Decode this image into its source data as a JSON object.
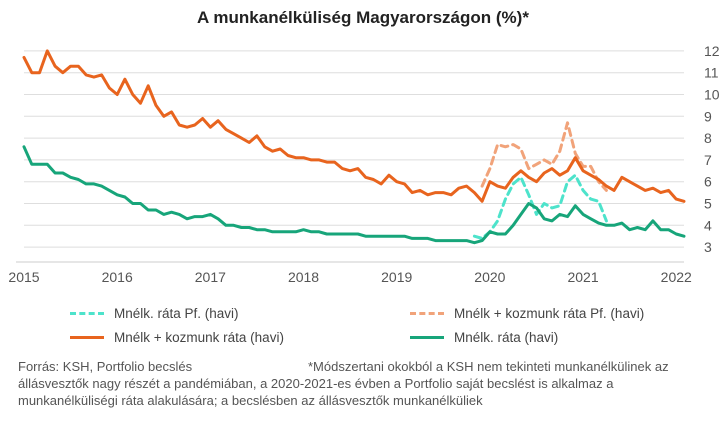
{
  "chart_data": {
    "type": "line",
    "title": "A munkanélküliség Magyarországon (%)*",
    "x_axis": {
      "ticks": [
        "2015",
        "2016",
        "2017",
        "2018",
        "2019",
        "2020",
        "2021",
        "2022"
      ],
      "range": [
        "2015-01",
        "2022-02"
      ]
    },
    "y_axis": {
      "ticks": [
        "3",
        "4",
        "5",
        "6",
        "7",
        "8",
        "9",
        "10",
        "11",
        "12"
      ],
      "range": [
        2.5,
        12.5
      ],
      "position": "right"
    },
    "grid": "horizontal",
    "legend_placement": "bottom",
    "series": [
      {
        "name": "Mnélk + kozmunk ráta (havi)",
        "color": "#e8641e",
        "style": "solid",
        "x": [
          "2015-01",
          "2015-02",
          "2015-03",
          "2015-04",
          "2015-05",
          "2015-06",
          "2015-07",
          "2015-08",
          "2015-09",
          "2015-10",
          "2015-11",
          "2015-12",
          "2016-01",
          "2016-02",
          "2016-03",
          "2016-04",
          "2016-05",
          "2016-06",
          "2016-07",
          "2016-08",
          "2016-09",
          "2016-10",
          "2016-11",
          "2016-12",
          "2017-01",
          "2017-02",
          "2017-03",
          "2017-04",
          "2017-05",
          "2017-06",
          "2017-07",
          "2017-08",
          "2017-09",
          "2017-10",
          "2017-11",
          "2017-12",
          "2018-01",
          "2018-02",
          "2018-03",
          "2018-04",
          "2018-05",
          "2018-06",
          "2018-07",
          "2018-08",
          "2018-09",
          "2018-10",
          "2018-11",
          "2018-12",
          "2019-01",
          "2019-02",
          "2019-03",
          "2019-04",
          "2019-05",
          "2019-06",
          "2019-07",
          "2019-08",
          "2019-09",
          "2019-10",
          "2019-11",
          "2019-12",
          "2020-01",
          "2020-02",
          "2020-03",
          "2020-04",
          "2020-05",
          "2020-06",
          "2020-07",
          "2020-08",
          "2020-09",
          "2020-10",
          "2020-11",
          "2020-12",
          "2021-01",
          "2021-02",
          "2021-03",
          "2021-04",
          "2021-05",
          "2021-06",
          "2021-07",
          "2021-08",
          "2021-09",
          "2021-10",
          "2021-11",
          "2021-12",
          "2022-01",
          "2022-02"
        ],
        "values": [
          11.7,
          11.0,
          11.0,
          12.0,
          11.3,
          11.0,
          11.3,
          11.3,
          10.9,
          10.8,
          10.9,
          10.3,
          10.0,
          10.7,
          10.0,
          9.6,
          10.4,
          9.5,
          9.0,
          9.2,
          8.6,
          8.5,
          8.6,
          8.9,
          8.5,
          8.8,
          8.4,
          8.2,
          8.0,
          7.8,
          8.1,
          7.6,
          7.4,
          7.5,
          7.2,
          7.1,
          7.1,
          7.0,
          7.0,
          6.9,
          6.9,
          6.6,
          6.5,
          6.6,
          6.2,
          6.1,
          5.9,
          6.3,
          6.0,
          5.9,
          5.5,
          5.6,
          5.4,
          5.5,
          5.5,
          5.4,
          5.7,
          5.8,
          5.5,
          5.1,
          6.0,
          5.8,
          5.7,
          6.2,
          6.5,
          6.2,
          6.0,
          6.4,
          6.6,
          6.3,
          6.5,
          7.1,
          6.5,
          6.3,
          6.1,
          5.8,
          5.6,
          6.2,
          6.0,
          5.8,
          5.6,
          5.7,
          5.5,
          5.6,
          5.2,
          5.1
        ]
      },
      {
        "name": "Mnélk. ráta (havi)",
        "color": "#17a57a",
        "style": "solid",
        "x": [
          "2015-01",
          "2015-02",
          "2015-03",
          "2015-04",
          "2015-05",
          "2015-06",
          "2015-07",
          "2015-08",
          "2015-09",
          "2015-10",
          "2015-11",
          "2015-12",
          "2016-01",
          "2016-02",
          "2016-03",
          "2016-04",
          "2016-05",
          "2016-06",
          "2016-07",
          "2016-08",
          "2016-09",
          "2016-10",
          "2016-11",
          "2016-12",
          "2017-01",
          "2017-02",
          "2017-03",
          "2017-04",
          "2017-05",
          "2017-06",
          "2017-07",
          "2017-08",
          "2017-09",
          "2017-10",
          "2017-11",
          "2017-12",
          "2018-01",
          "2018-02",
          "2018-03",
          "2018-04",
          "2018-05",
          "2018-06",
          "2018-07",
          "2018-08",
          "2018-09",
          "2018-10",
          "2018-11",
          "2018-12",
          "2019-01",
          "2019-02",
          "2019-03",
          "2019-04",
          "2019-05",
          "2019-06",
          "2019-07",
          "2019-08",
          "2019-09",
          "2019-10",
          "2019-11",
          "2019-12",
          "2020-01",
          "2020-02",
          "2020-03",
          "2020-04",
          "2020-05",
          "2020-06",
          "2020-07",
          "2020-08",
          "2020-09",
          "2020-10",
          "2020-11",
          "2020-12",
          "2021-01",
          "2021-02",
          "2021-03",
          "2021-04",
          "2021-05",
          "2021-06",
          "2021-07",
          "2021-08",
          "2021-09",
          "2021-10",
          "2021-11",
          "2021-12",
          "2022-01",
          "2022-02"
        ],
        "values": [
          7.6,
          6.8,
          6.8,
          6.8,
          6.4,
          6.4,
          6.2,
          6.1,
          5.9,
          5.9,
          5.8,
          5.6,
          5.4,
          5.3,
          5.0,
          5.0,
          4.7,
          4.7,
          4.5,
          4.6,
          4.5,
          4.3,
          4.4,
          4.4,
          4.5,
          4.3,
          4.0,
          4.0,
          3.9,
          3.9,
          3.8,
          3.8,
          3.7,
          3.7,
          3.7,
          3.7,
          3.8,
          3.7,
          3.7,
          3.6,
          3.6,
          3.6,
          3.6,
          3.6,
          3.5,
          3.5,
          3.5,
          3.5,
          3.5,
          3.5,
          3.4,
          3.4,
          3.4,
          3.3,
          3.3,
          3.3,
          3.3,
          3.3,
          3.2,
          3.3,
          3.7,
          3.6,
          3.6,
          4.0,
          4.5,
          5.0,
          4.8,
          4.3,
          4.2,
          4.5,
          4.4,
          4.9,
          4.5,
          4.3,
          4.1,
          4.0,
          4.0,
          4.1,
          3.8,
          3.9,
          3.8,
          4.2,
          3.8,
          3.8,
          3.6,
          3.5
        ]
      },
      {
        "name": "Mnélk. ráta Pf. (havi)",
        "color": "#4de3cb",
        "style": "dashed",
        "x": [
          "2019-11",
          "2019-12",
          "2020-01",
          "2020-02",
          "2020-03",
          "2020-04",
          "2020-05",
          "2020-06",
          "2020-07",
          "2020-08",
          "2020-09",
          "2020-10",
          "2020-11",
          "2020-12",
          "2021-01",
          "2021-02",
          "2021-03",
          "2021-04"
        ],
        "values": [
          3.5,
          3.4,
          3.7,
          4.2,
          5.2,
          5.9,
          6.2,
          5.4,
          4.5,
          5.0,
          4.8,
          4.9,
          6.0,
          6.3,
          5.6,
          5.2,
          5.1,
          4.2
        ]
      },
      {
        "name": "Mnélk + kozmunk ráta Pf. (havi)",
        "color": "#f1a37a",
        "style": "dashed",
        "x": [
          "2019-12",
          "2020-01",
          "2020-02",
          "2020-03",
          "2020-04",
          "2020-05",
          "2020-06",
          "2020-07",
          "2020-08",
          "2020-09",
          "2020-10",
          "2020-11",
          "2020-12",
          "2021-01",
          "2021-02",
          "2021-03",
          "2021-04"
        ],
        "values": [
          5.8,
          6.6,
          7.7,
          7.6,
          7.7,
          7.5,
          6.6,
          6.8,
          7.0,
          6.8,
          7.4,
          8.7,
          7.3,
          6.7,
          6.7,
          6.0,
          5.6
        ]
      }
    ]
  },
  "legend": {
    "items": [
      {
        "label": "Mnélk. ráta Pf. (havi)",
        "color": "#4de3cb",
        "style": "dashed"
      },
      {
        "label": "Mnélk + kozmunk ráta Pf. (havi)",
        "color": "#f1a37a",
        "style": "dashed"
      },
      {
        "label": "Mnélk + kozmunk ráta (havi)",
        "color": "#e8641e",
        "style": "solid"
      },
      {
        "label": "Mnélk. ráta (havi)",
        "color": "#17a57a",
        "style": "solid"
      }
    ]
  },
  "footer": {
    "source": "Forrás: KSH, Portfolio becslés",
    "note": "*Módszertani okokból a KSH nem tekinteti munkanélkülinek az állásvesztők nagy részét a pandémiában, a 2020-2021-es  évben a Portfolio saját becslést is alkalmaz a munkanélküliségi ráta alakulására; a becslésben az állásvesztők munkanélküliek"
  }
}
